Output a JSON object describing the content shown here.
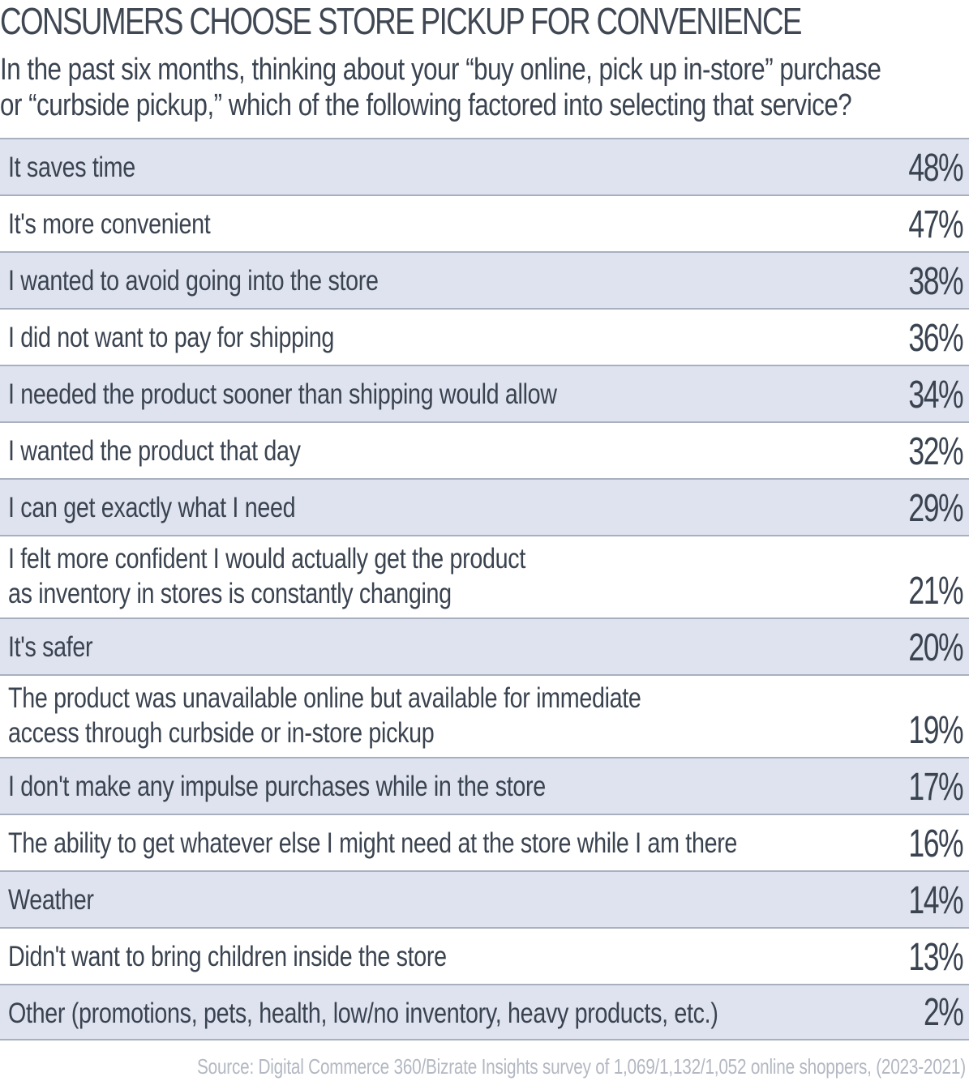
{
  "title": "CONSUMERS CHOOSE STORE PICKUP FOR CONVENIENCE",
  "subtitle_lines": [
    "In the past six months, thinking about your “buy online, pick up in-store” purchase",
    "or “curbside pickup,” which of the following factored into selecting that service?"
  ],
  "source": "Source: Digital Commerce 360/Bizrate Insights survey of 1,069/1,132/1,052 online shoppers, (2023-2021)",
  "colors": {
    "shaded_row": "#dfe3ef",
    "row_rule": "#a8b0be",
    "text": "#3a4350",
    "source_text": "#b3b8c2"
  },
  "chart_data": {
    "type": "table",
    "title": "CONSUMERS CHOOSE STORE PICKUP FOR CONVENIENCE",
    "rows": [
      {
        "label": "It saves time",
        "value": 48,
        "display": "48%"
      },
      {
        "label": "It's more convenient",
        "value": 47,
        "display": "47%"
      },
      {
        "label": "I wanted to avoid going into the store",
        "value": 38,
        "display": "38%"
      },
      {
        "label": "I did not want to pay for shipping",
        "value": 36,
        "display": "36%"
      },
      {
        "label": "I needed the product sooner than shipping would allow",
        "value": 34,
        "display": "34%"
      },
      {
        "label": "I wanted the product that day",
        "value": 32,
        "display": "32%"
      },
      {
        "label": "I can get exactly what I need",
        "value": 29,
        "display": "29%"
      },
      {
        "label": "I felt more confident I would actually get the product\nas inventory in stores is constantly changing",
        "value": 21,
        "display": "21%"
      },
      {
        "label": "It's safer",
        "value": 20,
        "display": "20%"
      },
      {
        "label": "The product was unavailable online but available for immediate\naccess through curbside or in-store pickup",
        "value": 19,
        "display": "19%"
      },
      {
        "label": "I don't make any impulse purchases while in the store",
        "value": 17,
        "display": "17%"
      },
      {
        "label": "The ability to get whatever else I might need at the store while I am there",
        "value": 16,
        "display": "16%"
      },
      {
        "label": "Weather",
        "value": 14,
        "display": "14%"
      },
      {
        "label": "Didn't want to bring children inside the store",
        "value": 13,
        "display": "13%"
      },
      {
        "label": "Other (promotions, pets, health, low/no inventory, heavy products, etc.)",
        "value": 2,
        "display": "2%"
      }
    ]
  }
}
